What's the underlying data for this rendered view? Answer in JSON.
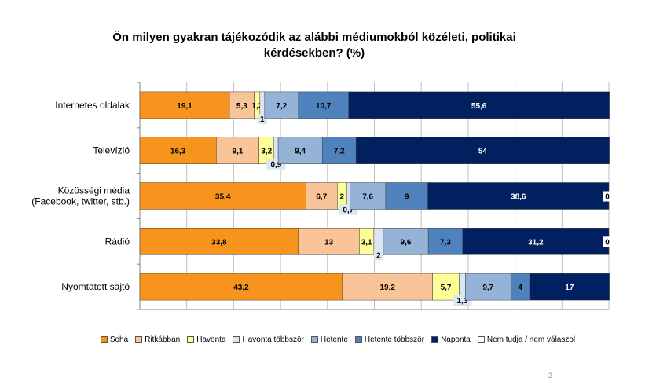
{
  "chart_data": {
    "type": "bar",
    "orientation": "horizontal",
    "stacked": true,
    "title_line1": "Ön milyen gyakran tájékozódik az alábbi médiumokból közéleti, politikai",
    "title_line2": "kérdésekben? (%)",
    "categories": [
      "Internetes oldalak",
      "Televízió",
      "Közösségi média\n(Facebook, twitter, stb.)",
      "Rádió",
      "Nyomtatott sajtó"
    ],
    "series": [
      {
        "name": "Soha",
        "color": "#f7941e",
        "values": [
          19.1,
          16.3,
          35.4,
          33.8,
          43.2
        ],
        "labels": [
          "19,1",
          "16,3",
          "35,4",
          "33,8",
          "43,2"
        ]
      },
      {
        "name": "Ritkábban",
        "color": "#f9c498",
        "values": [
          5.3,
          9.1,
          6.7,
          13,
          19.2
        ],
        "labels": [
          "5,3",
          "9,1",
          "6,7",
          "13",
          "19,2"
        ]
      },
      {
        "name": "Havonta",
        "color": "#fefe99",
        "values": [
          1.2,
          3.2,
          2,
          3.1,
          5.7
        ],
        "labels": [
          "1,2",
          "3,2",
          "2",
          "3,1",
          "5,7"
        ]
      },
      {
        "name": "Havonta többször",
        "color": "#dce6f2",
        "values": [
          1,
          0.9,
          0.7,
          2,
          1.3
        ],
        "labels": [
          "1",
          "0,9",
          "0,7",
          "2",
          "1,3"
        ]
      },
      {
        "name": "Hetente",
        "color": "#95b3d7",
        "values": [
          7.2,
          9.4,
          7.6,
          9.6,
          9.7
        ],
        "labels": [
          "7,2",
          "9,4",
          "7,6",
          "9,6",
          "9,7"
        ]
      },
      {
        "name": "Hetente többször",
        "color": "#4f81bd",
        "values": [
          10.7,
          7.2,
          9,
          7.3,
          4
        ],
        "labels": [
          "10,7",
          "7,2",
          "9",
          "7,3",
          "4"
        ]
      },
      {
        "name": "Naponta",
        "color": "#002060",
        "values": [
          55.6,
          54,
          38.6,
          31.2,
          17
        ],
        "labels": [
          "55,6",
          "54",
          "38,6",
          "31,2",
          "17"
        ]
      },
      {
        "name": "Nem tudja / nem válaszol",
        "color": "#ffffff",
        "values": [
          0,
          0,
          0,
          0,
          0
        ],
        "labels": [
          "",
          "",
          "0",
          "0",
          ""
        ]
      }
    ],
    "xlim": [
      0,
      100
    ],
    "gridlines": true,
    "legend_position": "bottom"
  },
  "page_number": "3"
}
